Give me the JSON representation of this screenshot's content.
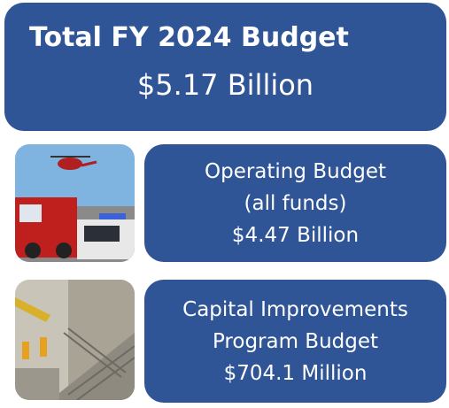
{
  "header": {
    "title": "Total FY 2024 Budget",
    "amount": "$5.17 Billion"
  },
  "items": [
    {
      "lines": [
        "Operating Budget",
        "(all funds)",
        "$4.47 Billion"
      ]
    },
    {
      "lines": [
        "Capital Improvements",
        "Program Budget",
        "$704.1 Million"
      ]
    }
  ]
}
